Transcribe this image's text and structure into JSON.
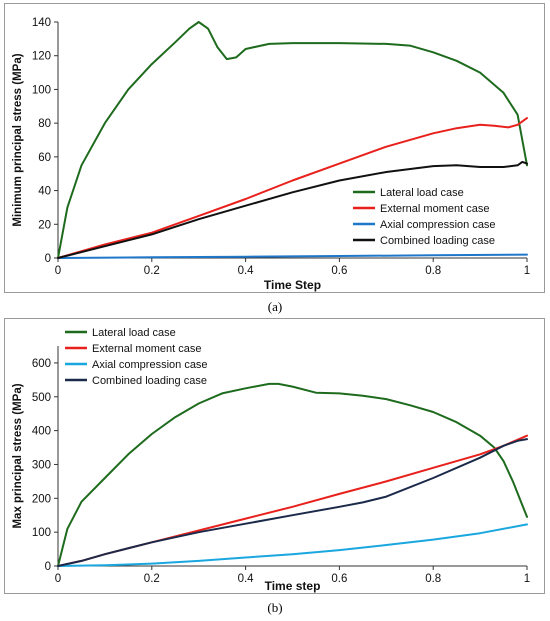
{
  "captions": {
    "a": "(a)",
    "b": "(b)"
  },
  "chart_data": [
    {
      "type": "line",
      "xlabel": "Time Step",
      "ylabel": "Minimum principal stress (MPa)",
      "xlim": [
        0,
        1
      ],
      "ylim": [
        0,
        140
      ],
      "xticks": [
        "0",
        "0.2",
        "0.4",
        "0.6",
        "0.8",
        "1"
      ],
      "yticks": [
        "0",
        "20",
        "40",
        "60",
        "80",
        "100",
        "120",
        "140"
      ],
      "grid": false,
      "legend": "bottom-right",
      "series": [
        {
          "name": "Lateral load case",
          "color": "#1e6b1e",
          "x": [
            0,
            0.02,
            0.05,
            0.1,
            0.15,
            0.2,
            0.25,
            0.28,
            0.3,
            0.32,
            0.34,
            0.36,
            0.38,
            0.4,
            0.45,
            0.5,
            0.6,
            0.7,
            0.75,
            0.8,
            0.85,
            0.9,
            0.95,
            0.98,
            1.0
          ],
          "y": [
            0,
            30,
            55,
            80,
            100,
            115,
            128,
            136,
            140,
            136,
            125,
            118,
            119,
            124,
            127,
            127.5,
            127.5,
            127,
            126,
            122,
            117,
            110,
            98,
            85,
            55
          ]
        },
        {
          "name": "External moment case",
          "color": "#e8211d",
          "x": [
            0,
            0.1,
            0.2,
            0.3,
            0.4,
            0.5,
            0.6,
            0.7,
            0.8,
            0.85,
            0.9,
            0.93,
            0.96,
            0.98,
            1.0
          ],
          "y": [
            0,
            8,
            15,
            25,
            35,
            46,
            56,
            66,
            74,
            77,
            79,
            78.5,
            77.5,
            79,
            83
          ]
        },
        {
          "name": "Axial compression case",
          "color": "#1f77c9",
          "x": [
            0,
            0.2,
            0.4,
            0.6,
            0.8,
            1.0
          ],
          "y": [
            0,
            0.4,
            0.8,
            1.2,
            1.6,
            2
          ]
        },
        {
          "name": "Combined loading case",
          "color": "#111111",
          "x": [
            0,
            0.1,
            0.2,
            0.3,
            0.4,
            0.5,
            0.6,
            0.7,
            0.8,
            0.85,
            0.9,
            0.95,
            0.98,
            0.99,
            1.0
          ],
          "y": [
            0,
            7,
            14,
            23,
            31,
            39,
            46,
            51,
            54.5,
            55,
            54,
            54,
            55,
            57,
            56
          ]
        }
      ]
    },
    {
      "type": "line",
      "xlabel": "Time step",
      "ylabel": "Max principal stress (MPa)",
      "xlim": [
        0,
        1
      ],
      "ylim": [
        0,
        650
      ],
      "xticks": [
        "0",
        "0.2",
        "0.4",
        "0.6",
        "0.8",
        "1"
      ],
      "yticks": [
        "0",
        "100",
        "200",
        "300",
        "400",
        "500",
        "600"
      ],
      "grid": false,
      "legend": "top-left",
      "series": [
        {
          "name": "Lateral load case",
          "color": "#1e6b1e",
          "x": [
            0,
            0.02,
            0.05,
            0.1,
            0.15,
            0.2,
            0.25,
            0.3,
            0.35,
            0.4,
            0.45,
            0.47,
            0.5,
            0.55,
            0.6,
            0.65,
            0.7,
            0.75,
            0.8,
            0.85,
            0.9,
            0.93,
            0.95,
            0.97,
            0.99,
            1.0
          ],
          "y": [
            0,
            110,
            190,
            260,
            330,
            390,
            440,
            480,
            510,
            525,
            538,
            538,
            530,
            512,
            510,
            503,
            493,
            475,
            455,
            425,
            385,
            350,
            310,
            250,
            180,
            145
          ]
        },
        {
          "name": "External moment case",
          "color": "#e8211d",
          "x": [
            0,
            0.05,
            0.1,
            0.2,
            0.3,
            0.4,
            0.5,
            0.6,
            0.7,
            0.8,
            0.9,
            0.95,
            1.0
          ],
          "y": [
            0,
            15,
            35,
            70,
            105,
            140,
            175,
            213,
            250,
            290,
            330,
            355,
            385
          ]
        },
        {
          "name": "Axial compression case",
          "color": "#1aa7e0",
          "x": [
            0,
            0.1,
            0.2,
            0.3,
            0.4,
            0.5,
            0.6,
            0.7,
            0.8,
            0.9,
            1.0
          ],
          "y": [
            0,
            2,
            7,
            15,
            25,
            35,
            47,
            62,
            78,
            97,
            123
          ]
        },
        {
          "name": "Combined loading case",
          "color": "#1b2a4a",
          "x": [
            0,
            0.05,
            0.1,
            0.2,
            0.3,
            0.4,
            0.5,
            0.6,
            0.65,
            0.7,
            0.8,
            0.9,
            0.95,
            0.98,
            1.0
          ],
          "y": [
            0,
            15,
            35,
            70,
            100,
            125,
            150,
            175,
            188,
            205,
            260,
            320,
            355,
            370,
            375
          ]
        }
      ]
    }
  ]
}
